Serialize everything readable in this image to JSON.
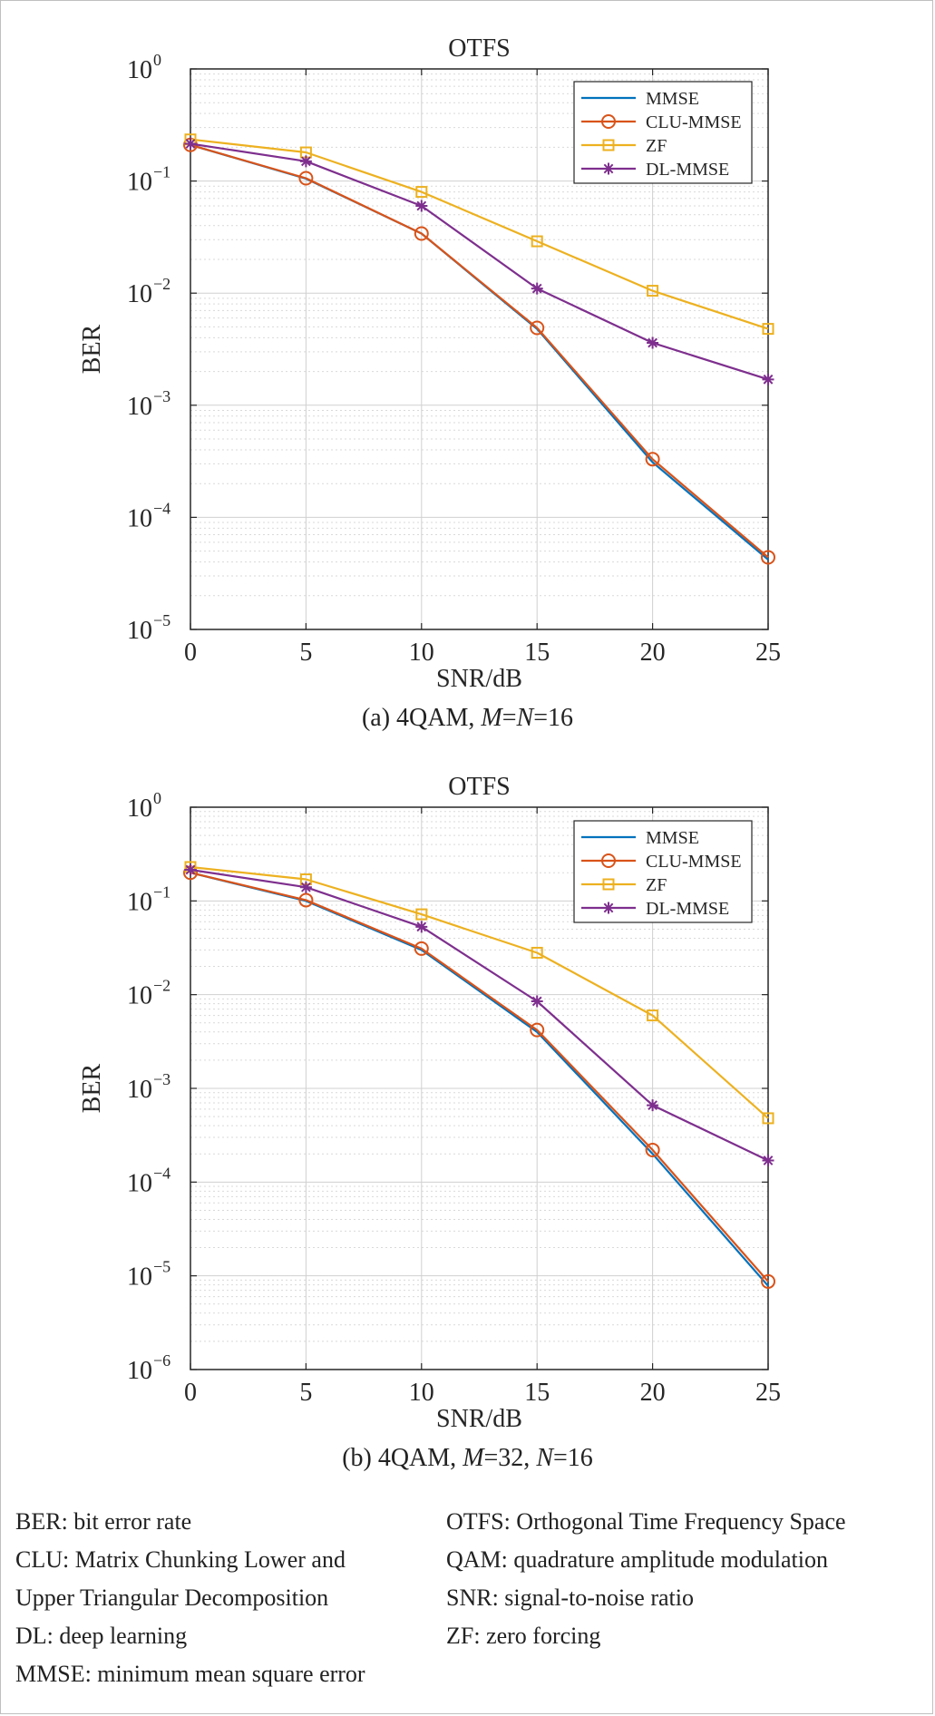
{
  "chart_data": [
    {
      "type": "line",
      "title": "OTFS",
      "xlabel": "SNR/dB",
      "ylabel": "BER",
      "yscale": "log",
      "xlim": [
        0,
        25
      ],
      "ylim": [
        1e-05,
        1
      ],
      "x": [
        0,
        5,
        10,
        15,
        20,
        25
      ],
      "xticks": [
        "0",
        "5",
        "10",
        "15",
        "20",
        "25"
      ],
      "ytick_exponents": [
        "0",
        "-1",
        "-2",
        "-3",
        "-4",
        "-5"
      ],
      "grid": true,
      "legend_position": "top-right",
      "series": [
        {
          "name": "MMSE",
          "color": "#0072BD",
          "marker": "none",
          "values": [
            0.21,
            0.105,
            0.034,
            0.0048,
            0.00031,
            4.2e-05
          ]
        },
        {
          "name": "CLU-MMSE",
          "color": "#D95319",
          "marker": "circle",
          "values": [
            0.21,
            0.106,
            0.034,
            0.0049,
            0.00033,
            4.4e-05
          ]
        },
        {
          "name": "ZF",
          "color": "#EDB120",
          "marker": "square",
          "values": [
            0.235,
            0.18,
            0.08,
            0.029,
            0.0105,
            0.0048
          ]
        },
        {
          "name": "DL-MMSE",
          "color": "#7E2F8E",
          "marker": "asterisk",
          "values": [
            0.215,
            0.15,
            0.06,
            0.011,
            0.0036,
            0.0017
          ]
        }
      ]
    },
    {
      "type": "line",
      "title": "OTFS",
      "xlabel": "SNR/dB",
      "ylabel": "BER",
      "yscale": "log",
      "xlim": [
        0,
        25
      ],
      "ylim": [
        1e-06,
        1
      ],
      "x": [
        0,
        5,
        10,
        15,
        20,
        25
      ],
      "xticks": [
        "0",
        "5",
        "10",
        "15",
        "20",
        "25"
      ],
      "ytick_exponents": [
        "0",
        "-1",
        "-2",
        "-3",
        "-4",
        "-5",
        "-6"
      ],
      "grid": true,
      "legend_position": "top-right",
      "series": [
        {
          "name": "MMSE",
          "color": "#0072BD",
          "marker": "none",
          "values": [
            0.2,
            0.1,
            0.03,
            0.004,
            0.0002,
            7.8e-06
          ]
        },
        {
          "name": "CLU-MMSE",
          "color": "#D95319",
          "marker": "circle",
          "values": [
            0.2,
            0.102,
            0.031,
            0.0042,
            0.00022,
            8.7e-06
          ]
        },
        {
          "name": "ZF",
          "color": "#EDB120",
          "marker": "square",
          "values": [
            0.23,
            0.17,
            0.072,
            0.028,
            0.006,
            0.00048
          ]
        },
        {
          "name": "DL-MMSE",
          "color": "#7E2F8E",
          "marker": "asterisk",
          "values": [
            0.215,
            0.14,
            0.053,
            0.0085,
            0.00066,
            0.00017
          ]
        }
      ]
    }
  ],
  "captions": {
    "a_prefix": "(a) 4QAM, ",
    "a_m": "M",
    "a_eq1": "=",
    "a_n": "N",
    "a_eq2": "=16",
    "b_prefix": "(b) 4QAM, ",
    "b_m": "M",
    "b_mid": "=32, ",
    "b_n": "N",
    "b_end": "=16"
  },
  "abbreviations": {
    "left": [
      "BER: bit error rate",
      "CLU: Matrix Chunking Lower and",
      "Upper Triangular Decomposition",
      "DL: deep learning",
      "MMSE: minimum mean square error"
    ],
    "right": [
      "OTFS: Orthogonal Time Frequency Space",
      "QAM: quadrature amplitude modulation",
      "SNR: signal-to-noise ratio",
      "ZF: zero forcing"
    ]
  }
}
